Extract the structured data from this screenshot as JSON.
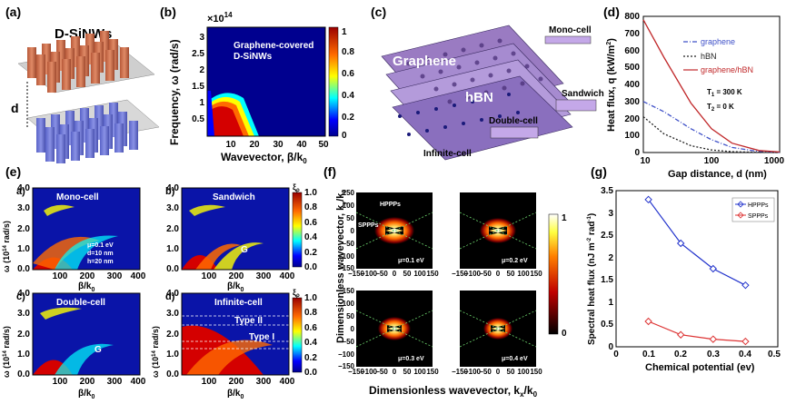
{
  "panel_labels": {
    "a": "(a)",
    "b": "(b)",
    "c": "(c)",
    "d": "(d)",
    "e": "(e)",
    "f": "(f)",
    "g": "(g)"
  },
  "panel_a": {
    "title": "D-SiNWs",
    "gap_label": "d"
  },
  "panel_b": {
    "exponent": "×10",
    "exponent_power": "14",
    "ylabel": "Frequency, ω (rad/s)",
    "xlabel": "Wavevector, β/k",
    "xlabel_sub": "0",
    "annotation_line1": "Graphene-covered",
    "annotation_line2": "D-SiNWs",
    "xticks": [
      "10",
      "20",
      "30",
      "40",
      "50"
    ],
    "yticks": [
      "0.5",
      "1",
      "1.5",
      "2",
      "2.5",
      "3"
    ],
    "cbar_ticks": [
      "1",
      "0.8",
      "0.6",
      "0.4",
      "0.2",
      "0"
    ]
  },
  "panel_c": {
    "graphene": "Graphene",
    "hbn": "hBN",
    "mono": "Mono-cell",
    "sandwich": "Sandwich",
    "double": "Double-cell",
    "infinite": "Infinite-cell"
  },
  "panel_e": {
    "ylabel": "ω (10",
    "ylabel_tail": " rad/s)",
    "xlabel": "β/k",
    "cbar_label": "ξ",
    "cbar_ticks": [
      "1.0",
      "0.8",
      "0.6",
      "0.4",
      "0.2",
      "0.0"
    ],
    "yticks": [
      "4.0",
      "3.5",
      "3.0",
      "2.5",
      "2.0",
      "1.5",
      "1.0",
      "0.5",
      "0.0"
    ],
    "xticks": [
      "100",
      "200",
      "300",
      "400"
    ],
    "sub_a": "a)",
    "sub_b": "b)",
    "sub_c": "c)",
    "sub_d": "d)",
    "mono": "Mono-cell",
    "sandwich": "Sandwich",
    "double": "Double-cell",
    "infinite": "Infinite-cell",
    "params": [
      "μ=0.1 eV",
      "d=10 nm",
      "h=20 nm"
    ],
    "g1": "G",
    "g2": "G",
    "type2": "Type II",
    "type1": "Type I"
  },
  "panel_f": {
    "ylabel": "Dimensionless wavevector, k",
    "xlabel": "Dimensionless wavevector, k",
    "ticks": [
      "−150",
      "−100",
      "−50",
      "0",
      "50",
      "100",
      "150"
    ],
    "yticks": [
      "150",
      "100",
      "50",
      "0",
      "−50",
      "−100",
      "−150"
    ],
    "hppps": "HPPPs",
    "sppps": "SPPPs",
    "mu": [
      "μ=0.1 eV",
      "μ=0.2 eV",
      "μ=0.3 eV",
      "μ=0.4 eV"
    ],
    "cbar_ticks": [
      "1",
      "0"
    ]
  },
  "panel_d": {
    "ylabel": "Heat flux, q (kW/m",
    "xlabel": "Gap distance, d (nm)",
    "xticks": [
      "10",
      "100",
      "1000"
    ],
    "yticks": [
      "0",
      "100",
      "200",
      "300",
      "400",
      "500",
      "600",
      "700",
      "800"
    ],
    "legend": [
      "graphene",
      "hBN",
      "graphene/hBN"
    ],
    "t1": "T",
    "t1_val": " = 300 K",
    "t2_val": " = 0 K",
    "colors": {
      "graphene": "#3f51c8",
      "hbn": "#222222",
      "graphene_hbn": "#c0282a"
    }
  },
  "panel_g": {
    "ylabel": "Spectral heat flux (nJ m",
    "xlabel": "Chemical potential (ev)",
    "legend": [
      "HPPPs",
      "SPPPs"
    ],
    "xticks": [
      "0",
      "0.1",
      "0.2",
      "0.3",
      "0.4",
      "0.5"
    ],
    "yticks": [
      "0",
      "0.5",
      "1",
      "1.5",
      "2",
      "2.5",
      "3",
      "3.5"
    ]
  },
  "chart_data": [
    {
      "type": "line",
      "title": "",
      "xlabel": "Gap distance, d (nm)",
      "ylabel": "Heat flux, q (kW/m²)",
      "xscale": "log",
      "xlim": [
        10,
        1000
      ],
      "ylim": [
        0,
        800
      ],
      "series": [
        {
          "name": "graphene",
          "x": [
            10,
            20,
            50,
            100,
            200,
            500,
            1000
          ],
          "y": [
            300,
            240,
            140,
            75,
            30,
            6,
            1
          ]
        },
        {
          "name": "hBN",
          "x": [
            10,
            20,
            50,
            100,
            200,
            500,
            1000
          ],
          "y": [
            210,
            110,
            40,
            15,
            5,
            1,
            0
          ]
        },
        {
          "name": "graphene/hBN",
          "x": [
            10,
            20,
            50,
            100,
            200,
            500,
            1000
          ],
          "y": [
            780,
            560,
            290,
            140,
            55,
            12,
            3
          ]
        }
      ],
      "legend": "top-right"
    },
    {
      "type": "line",
      "title": "",
      "xlabel": "Chemical potential (ev)",
      "ylabel": "Spectral heat flux (nJ m⁻² rad⁻¹)",
      "xlim": [
        0,
        0.5
      ],
      "ylim": [
        0,
        3.5
      ],
      "categories": [
        0.1,
        0.2,
        0.3,
        0.4
      ],
      "series": [
        {
          "name": "HPPPs",
          "values": [
            3.3,
            2.32,
            1.75,
            1.38
          ]
        },
        {
          "name": "SPPPs",
          "values": [
            0.57,
            0.27,
            0.17,
            0.12
          ]
        }
      ],
      "legend": "top-right"
    }
  ]
}
